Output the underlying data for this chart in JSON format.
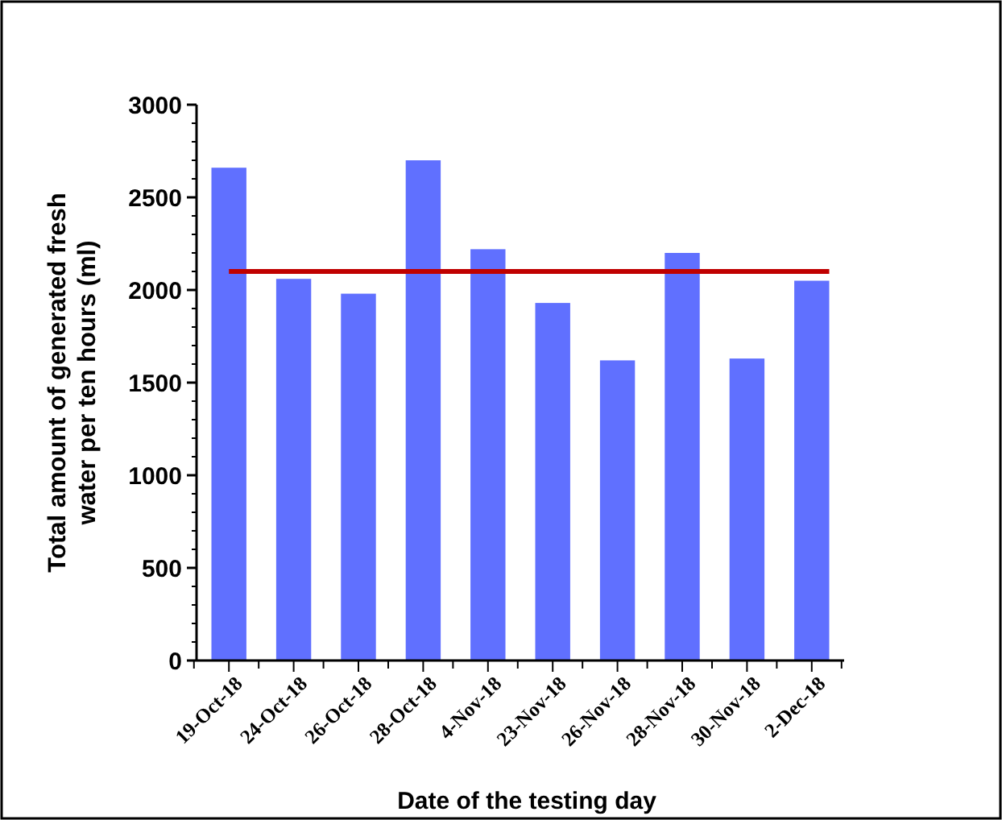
{
  "chart_data": {
    "type": "bar",
    "xlabel": "Date of the testing day",
    "ylabel": "Total amount of generated fresh water per ten hours (ml)",
    "categories": [
      "19-Oct-18",
      "24-Oct-18",
      "26-Oct-18",
      "28-Oct-18",
      "4-Nov-18",
      "23-Nov-18",
      "26-Nov-18",
      "28-Nov-18",
      "30-Nov-18",
      "2-Dec-18"
    ],
    "values": [
      2660,
      2060,
      1980,
      2700,
      2220,
      1930,
      1620,
      2200,
      1630,
      2050
    ],
    "color": "#6070ff",
    "ylim": [
      0,
      3000
    ],
    "yticks": [
      0,
      500,
      1000,
      1500,
      2000,
      2500,
      3000
    ],
    "ref_lines": [
      {
        "axis": "y",
        "value": 2100,
        "color": "#c00000",
        "line_style": "solid"
      }
    ],
    "grid": false
  }
}
